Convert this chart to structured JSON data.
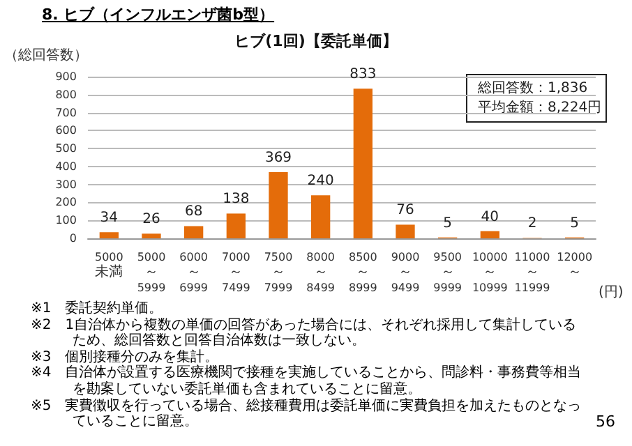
{
  "chart_data": {
    "type": "bar",
    "title": "ヒブ(1回)【委託単価】",
    "subtitle": "8. ヒブ（インフルエンザ菌b型）",
    "ylabel": "（総回答数）",
    "xlabel": "(円)",
    "categories": [
      "5000未満",
      "5000～5999",
      "6000～6999",
      "7000～7499",
      "7500～7999",
      "8000～8499",
      "8500～8999",
      "9000～9499",
      "9500～9999",
      "10000～10999",
      "11000～11999",
      "12000～"
    ],
    "values": [
      34,
      26,
      68,
      138,
      369,
      240,
      833,
      76,
      5,
      40,
      2,
      5
    ],
    "color": "#e46c0a",
    "ylim": [
      0,
      900
    ],
    "yticks": [
      0,
      100,
      200,
      300,
      400,
      500,
      600,
      700,
      800,
      900
    ],
    "grid": "y",
    "data_labels": true,
    "annotations": [
      "総回答数：1,836",
      "平均金額：8,224円",
      "※1　委託契約単価。",
      "※2　1自治体から複数の単価の回答があった場合には、それぞれ採用して集計しているため、総回答数と回答自治体数は一致しない。",
      "※3　個別接種分のみを集計。",
      "※4　自治体が設置する医療機関で接種を実施していることから、問診料・事務費等相当を勘案していない委託単価も含まれていることに留意。",
      "※5　実費徴収を行っている場合、総接種費用は委託単価に実費負担を加えたものとなっていることに留意。",
      "56"
    ]
  }
}
